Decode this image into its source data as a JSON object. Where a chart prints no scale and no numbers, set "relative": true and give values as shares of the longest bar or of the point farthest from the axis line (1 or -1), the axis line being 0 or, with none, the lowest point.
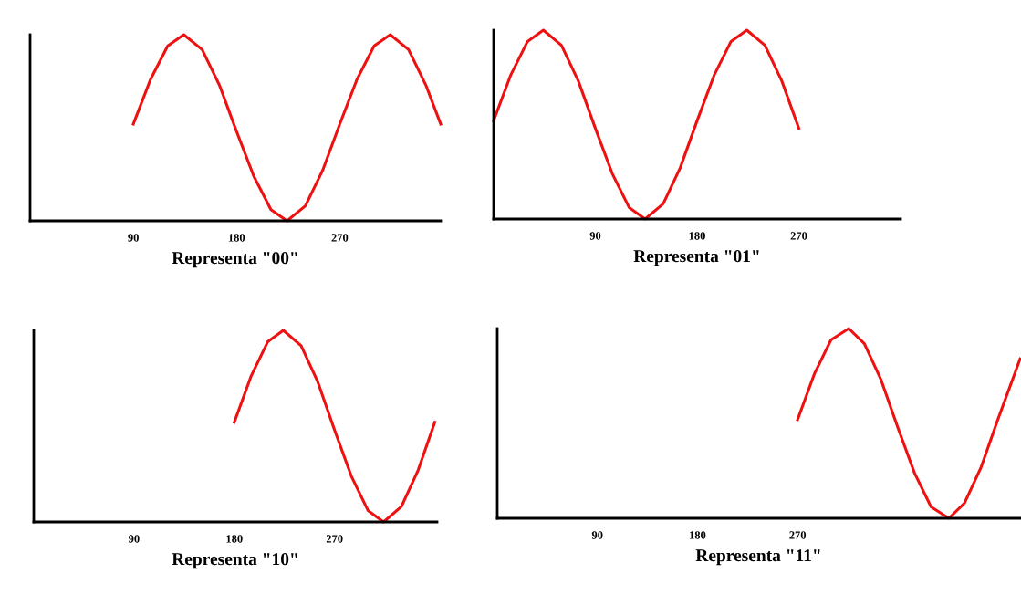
{
  "chart_data": [
    {
      "type": "line",
      "xlabel": "Representa \"00\"",
      "relative": true,
      "xlim": [
        0,
        358
      ],
      "xticks": [
        90,
        180,
        270
      ],
      "tick_labels": "x",
      "grid": false,
      "legend": false,
      "marker": "none",
      "line_style": "solid",
      "series": [
        {
          "color": "#ee1111",
          "x": [
            90,
            105,
            120,
            134,
            150,
            165,
            180,
            195,
            210,
            224,
            240,
            255,
            270,
            285,
            300,
            314,
            330,
            345,
            358
          ],
          "values": [
            0.52,
            0.76,
            0.94,
            1,
            0.92,
            0.73,
            0.48,
            0.24,
            0.06,
            0,
            0.08,
            0.27,
            0.52,
            0.76,
            0.94,
            1,
            0.92,
            0.73,
            0.52
          ]
        }
      ]
    },
    {
      "type": "line",
      "xlabel": "Representa \"01\"",
      "relative": true,
      "xlim": [
        0,
        360
      ],
      "xticks": [
        90,
        180,
        270
      ],
      "tick_labels": "x",
      "grid": false,
      "legend": false,
      "marker": "none",
      "line_style": "solid",
      "series": [
        {
          "color": "#ee1111",
          "x": [
            0,
            15,
            30,
            44,
            60,
            75,
            90,
            105,
            120,
            134,
            150,
            165,
            180,
            195,
            210,
            224,
            240,
            255,
            270
          ],
          "values": [
            0.52,
            0.76,
            0.94,
            1,
            0.92,
            0.73,
            0.48,
            0.24,
            0.06,
            0,
            0.08,
            0.27,
            0.52,
            0.76,
            0.94,
            1,
            0.92,
            0.73,
            0.48
          ]
        }
      ]
    },
    {
      "type": "line",
      "xlabel": "Representa \"10\"",
      "relative": true,
      "xlim": [
        0,
        362
      ],
      "xticks": [
        90,
        180,
        270
      ],
      "tick_labels": "x",
      "grid": false,
      "legend": false,
      "marker": "none",
      "line_style": "solid",
      "series": [
        {
          "color": "#ee1111",
          "x": [
            180,
            195,
            210,
            224,
            240,
            255,
            270,
            285,
            300,
            314,
            330,
            345,
            360
          ],
          "values": [
            0.52,
            0.76,
            0.94,
            1,
            0.92,
            0.73,
            0.48,
            0.24,
            0.06,
            0,
            0.08,
            0.27,
            0.52
          ]
        }
      ]
    },
    {
      "type": "line",
      "xlabel": "Representa \"11\"",
      "relative": true,
      "xlim": [
        0,
        470
      ],
      "xticks": [
        90,
        180,
        270
      ],
      "tick_labels": "x",
      "grid": false,
      "legend": false,
      "marker": "none",
      "line_style": "solid",
      "series": [
        {
          "color": "#ee1111",
          "x": [
            270,
            285,
            300,
            316,
            330,
            345,
            360,
            375,
            390,
            406,
            420,
            435,
            450,
            465,
            470
          ],
          "values": [
            0.52,
            0.76,
            0.94,
            1,
            0.92,
            0.73,
            0.48,
            0.24,
            0.06,
            0,
            0.08,
            0.27,
            0.52,
            0.76,
            0.84
          ]
        }
      ]
    }
  ]
}
